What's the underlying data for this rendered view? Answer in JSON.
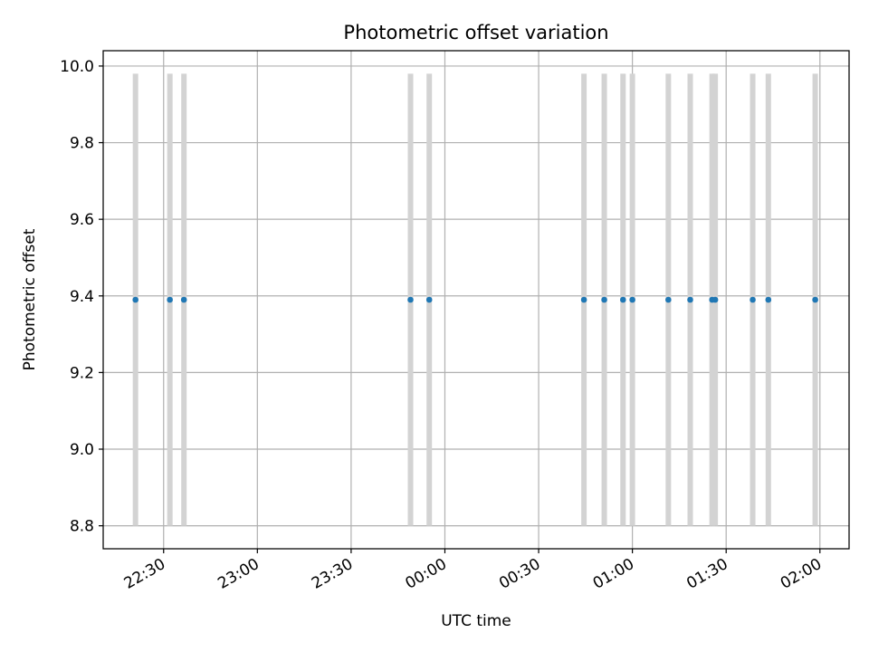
{
  "chart_data": {
    "type": "scatter",
    "title": "Photometric offset variation",
    "xlabel": "UTC time",
    "ylabel": "Photometric offset",
    "x_unit": "UTC clock time (day 1 evening to day 2 morning)",
    "xlim": [
      "22:10:40",
      "02:09:20"
    ],
    "ylim": [
      8.74,
      10.04
    ],
    "grid": true,
    "x_tick_labels": [
      "22:30",
      "23:00",
      "23:30",
      "00:00",
      "00:30",
      "01:00",
      "01:30",
      "02:00"
    ],
    "y_tick_labels": [
      "8.8",
      "9.0",
      "9.2",
      "9.4",
      "9.6",
      "9.8",
      "10.0"
    ],
    "y_ticks": [
      8.8,
      9.0,
      9.2,
      9.4,
      9.6,
      9.8,
      10.0
    ],
    "series": [
      {
        "x": [
          "22:21",
          "22:32",
          "22:36:30",
          "23:49",
          "23:55",
          "00:44:30",
          "00:51",
          "00:57",
          "01:00",
          "01:11:30",
          "01:18:30",
          "01:25:30",
          "01:26:30",
          "01:38:30",
          "01:43:30",
          "01:58:30"
        ],
        "y": [
          9.39,
          9.39,
          9.39,
          9.39,
          9.39,
          9.39,
          9.39,
          9.39,
          9.39,
          9.39,
          9.39,
          9.39,
          9.39,
          9.39,
          9.39,
          9.39
        ],
        "error_low": [
          8.8,
          8.8,
          8.8,
          8.8,
          8.8,
          8.8,
          8.8,
          8.8,
          8.8,
          8.8,
          8.8,
          8.8,
          8.8,
          8.8,
          8.8,
          8.8
        ],
        "error_high": [
          9.98,
          9.98,
          9.98,
          9.98,
          9.98,
          9.98,
          9.98,
          9.98,
          9.98,
          9.98,
          9.98,
          9.98,
          9.98,
          9.98,
          9.98,
          9.98
        ]
      }
    ],
    "colors": {
      "points": "#1f77b4",
      "errorbars": "#d3d3d3",
      "grid": "#b0b0b0",
      "axes": "#000000"
    }
  }
}
